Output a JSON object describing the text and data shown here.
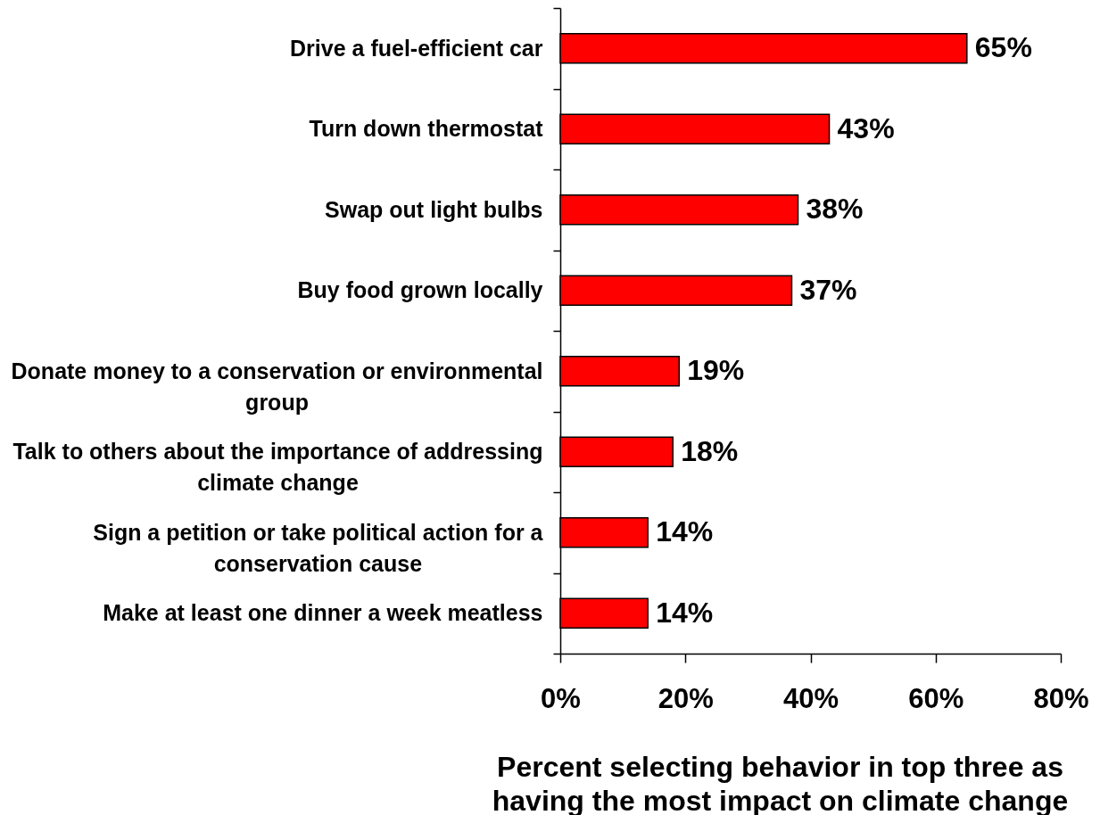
{
  "chart_data": {
    "type": "bar",
    "orientation": "horizontal",
    "categories": [
      "Drive a fuel-efficient car",
      "Turn down thermostat",
      "Swap out light bulbs",
      "Buy food grown locally",
      "Donate money to a conservation or environmental group",
      "Talk to others about the importance of addressing climate change",
      "Sign a petition or take political action for a conservation cause",
      "Make at least one dinner a week meatless"
    ],
    "values": [
      65,
      43,
      38,
      37,
      19,
      18,
      14,
      14
    ],
    "value_labels": [
      "65%",
      "43%",
      "38%",
      "37%",
      "19%",
      "18%",
      "14%",
      "14%"
    ],
    "color": "#ff0000",
    "xlim": [
      0,
      80
    ],
    "xticks": [
      {
        "value": 0,
        "label": "0%"
      },
      {
        "value": 20,
        "label": "20%"
      },
      {
        "value": 40,
        "label": "40%"
      },
      {
        "value": 60,
        "label": "60%"
      },
      {
        "value": 80,
        "label": "80%"
      }
    ],
    "xlabel": "Percent selecting behavior in top three as having the most impact on climate change"
  }
}
